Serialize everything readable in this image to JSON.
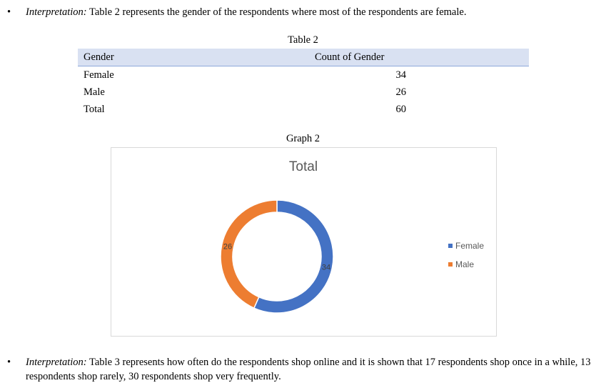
{
  "para1": {
    "bullet": "•",
    "lead": "Interpretation:",
    "text": " Table 2 represents the gender of the respondents where most of the respondents are female."
  },
  "table": {
    "caption": "Table 2",
    "headers": [
      "Gender",
      "Count of Gender"
    ],
    "rows": [
      {
        "label": "Female",
        "value": "34"
      },
      {
        "label": "Male",
        "value": "26"
      },
      {
        "label": "Total",
        "value": "60"
      }
    ]
  },
  "graph_caption": "Graph 2",
  "chart_data": {
    "type": "pie",
    "variant": "donut",
    "title": "Total",
    "categories": [
      "Female",
      "Male"
    ],
    "values": [
      34,
      26
    ],
    "colors": [
      "#4472c4",
      "#ed7d31"
    ],
    "data_labels": [
      "34",
      "26"
    ],
    "legend": {
      "position": "right",
      "entries": [
        "Female",
        "Male"
      ]
    }
  },
  "para2": {
    "bullet": "•",
    "lead": "Interpretation:",
    "text": " Table 3 represents how often do the respondents shop online and it is shown that 17 respondents shop once in a while, 13 respondents shop rarely, 30 respondents shop very frequently."
  }
}
